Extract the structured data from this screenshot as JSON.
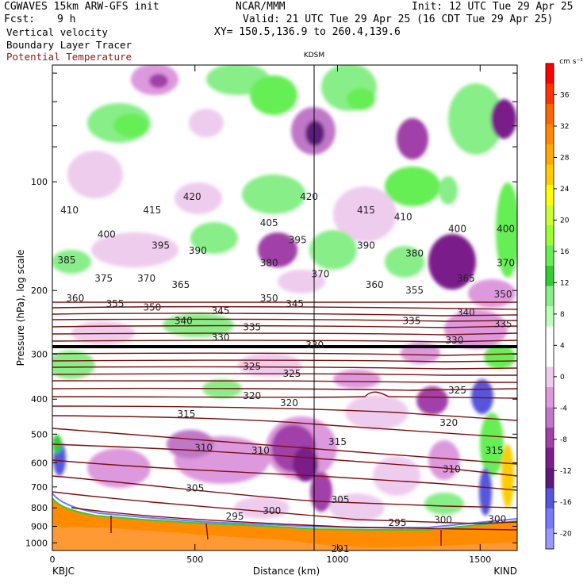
{
  "header": {
    "model": "CGWAVES 15km ARW-GFS init",
    "center": "NCAR/MMM",
    "init": "Init: 12 UTC Tue 29 Apr 25",
    "fcst_label": "Fcst:",
    "fcst_value": "9 h",
    "valid": "Valid: 21 UTC Tue 29 Apr 25 (16 CDT Tue 29 Apr 25)",
    "field1": "Vertical velocity",
    "field2": "Boundary Layer Tracer",
    "field3": "Potential Temperature",
    "xy": "XY= 150.5,136.9 to 260.4,139.6"
  },
  "chart_data": {
    "type": "heatmap",
    "title": "",
    "station_mid": "KDSM",
    "xlabel": "Distance (km)",
    "ylabel": "Pressure (hPa), log scale",
    "x_ticks": [
      "0",
      "500",
      "1000",
      "1500"
    ],
    "x_tick_values": [
      0,
      500,
      1000,
      1500
    ],
    "xlim": [
      0,
      1630
    ],
    "y_ticks": [
      "100",
      "200",
      "300",
      "400",
      "500",
      "600",
      "700",
      "800",
      "900",
      "1000"
    ],
    "y_tick_values": [
      100,
      200,
      300,
      400,
      500,
      600,
      700,
      800,
      900,
      1000
    ],
    "start_label": "KBJC",
    "end_label": "KIND",
    "kdsm_x_km": 925,
    "colorbar": {
      "unit": "cm s⁻¹",
      "labels": [
        "36",
        "32",
        "28",
        "24",
        "20",
        "16",
        "12",
        "8",
        "4",
        "0",
        "-4",
        "-8",
        "-12",
        "-16",
        "-20"
      ],
      "label_values": [
        36,
        32,
        28,
        24,
        20,
        16,
        12,
        8,
        4,
        0,
        -4,
        -8,
        -12,
        -16,
        -20
      ],
      "colors": [
        "#ff0000",
        "#ff3300",
        "#ff6600",
        "#ff8800",
        "#ffaa00",
        "#ffcc00",
        "#ffff00",
        "#ccff33",
        "#99ff33",
        "#66ee55",
        "#33cc33",
        "#88ee88",
        "#bbffbb",
        "#ffffff",
        "#ffffff",
        "#eeccee",
        "#dd99dd",
        "#c077c8",
        "#a040a8",
        "#7a1e8a",
        "#5c1a7a",
        "#5555dd",
        "#7777ff",
        "#9999ff"
      ]
    },
    "theta_contour_labels": [
      {
        "x_km": 60,
        "p": 120,
        "label": "410"
      },
      {
        "x_km": 350,
        "p": 120,
        "label": "415"
      },
      {
        "x_km": 490,
        "p": 110,
        "label": "420"
      },
      {
        "x_km": 900,
        "p": 110,
        "label": "420"
      },
      {
        "x_km": 1100,
        "p": 120,
        "label": "415"
      },
      {
        "x_km": 1230,
        "p": 125,
        "label": "410"
      },
      {
        "x_km": 190,
        "p": 140,
        "label": "400"
      },
      {
        "x_km": 380,
        "p": 150,
        "label": "395"
      },
      {
        "x_km": 510,
        "p": 155,
        "label": "390"
      },
      {
        "x_km": 760,
        "p": 130,
        "label": "405"
      },
      {
        "x_km": 860,
        "p": 145,
        "label": "395"
      },
      {
        "x_km": 1100,
        "p": 150,
        "label": "390"
      },
      {
        "x_km": 1270,
        "p": 158,
        "label": "380"
      },
      {
        "x_km": 1420,
        "p": 135,
        "label": "400"
      },
      {
        "x_km": 1590,
        "p": 135,
        "label": "400"
      },
      {
        "x_km": 50,
        "p": 165,
        "label": "385"
      },
      {
        "x_km": 760,
        "p": 168,
        "label": "380"
      },
      {
        "x_km": 1590,
        "p": 168,
        "label": "370"
      },
      {
        "x_km": 180,
        "p": 185,
        "label": "375"
      },
      {
        "x_km": 330,
        "p": 185,
        "label": "370"
      },
      {
        "x_km": 450,
        "p": 193,
        "label": "365"
      },
      {
        "x_km": 940,
        "p": 180,
        "label": "370"
      },
      {
        "x_km": 1450,
        "p": 185,
        "label": "365"
      },
      {
        "x_km": 1130,
        "p": 193,
        "label": "360"
      },
      {
        "x_km": 1270,
        "p": 200,
        "label": "355"
      },
      {
        "x_km": 1580,
        "p": 205,
        "label": "350"
      },
      {
        "x_km": 80,
        "p": 210,
        "label": "360"
      },
      {
        "x_km": 220,
        "p": 218,
        "label": "355"
      },
      {
        "x_km": 350,
        "p": 223,
        "label": "350"
      },
      {
        "x_km": 760,
        "p": 210,
        "label": "350"
      },
      {
        "x_km": 850,
        "p": 218,
        "label": "345"
      },
      {
        "x_km": 590,
        "p": 228,
        "label": "345"
      },
      {
        "x_km": 1450,
        "p": 230,
        "label": "340"
      },
      {
        "x_km": 460,
        "p": 243,
        "label": "340"
      },
      {
        "x_km": 700,
        "p": 253,
        "label": "335"
      },
      {
        "x_km": 1260,
        "p": 243,
        "label": "335"
      },
      {
        "x_km": 1580,
        "p": 248,
        "label": "335"
      },
      {
        "x_km": 590,
        "p": 270,
        "label": "330"
      },
      {
        "x_km": 920,
        "p": 283,
        "label": "330"
      },
      {
        "x_km": 1410,
        "p": 275,
        "label": "330"
      },
      {
        "x_km": 700,
        "p": 325,
        "label": "325"
      },
      {
        "x_km": 840,
        "p": 340,
        "label": "325"
      },
      {
        "x_km": 1420,
        "p": 378,
        "label": "325"
      },
      {
        "x_km": 700,
        "p": 392,
        "label": "320"
      },
      {
        "x_km": 830,
        "p": 410,
        "label": "320"
      },
      {
        "x_km": 1390,
        "p": 465,
        "label": "320"
      },
      {
        "x_km": 470,
        "p": 440,
        "label": "315"
      },
      {
        "x_km": 1000,
        "p": 525,
        "label": "315"
      },
      {
        "x_km": 1550,
        "p": 555,
        "label": "315"
      },
      {
        "x_km": 530,
        "p": 545,
        "label": "310"
      },
      {
        "x_km": 730,
        "p": 555,
        "label": "310"
      },
      {
        "x_km": 1400,
        "p": 625,
        "label": "310"
      },
      {
        "x_km": 500,
        "p": 705,
        "label": "305"
      },
      {
        "x_km": 1010,
        "p": 760,
        "label": "305"
      },
      {
        "x_km": 770,
        "p": 815,
        "label": "300"
      },
      {
        "x_km": 1370,
        "p": 865,
        "label": "300"
      },
      {
        "x_km": 1560,
        "p": 860,
        "label": "300"
      },
      {
        "x_km": 640,
        "p": 845,
        "label": "295"
      },
      {
        "x_km": 1210,
        "p": 880,
        "label": "295"
      },
      {
        "x_km": 1010,
        "p": 1040,
        "label": "291"
      }
    ]
  }
}
